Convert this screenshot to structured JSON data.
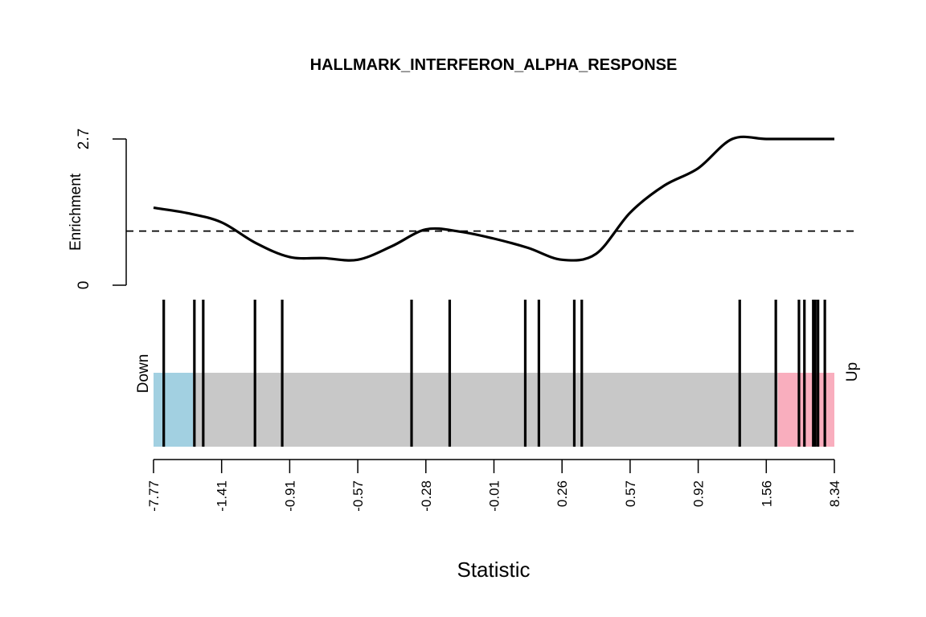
{
  "chart_data": {
    "type": "barcode-enrichment",
    "title": "HALLMARK_INTERFERON_ALPHA_RESPONSE",
    "xlabel": "Statistic",
    "enrichment_axis": {
      "label": "Enrichment",
      "ticks": [
        "0",
        "2.7"
      ],
      "ylim": [
        0,
        2.7
      ],
      "reference_line": 1.0
    },
    "enrichment_curve": {
      "x": [
        0.0,
        0.05,
        0.1,
        0.15,
        0.2,
        0.25,
        0.3,
        0.35,
        0.4,
        0.45,
        0.5,
        0.55,
        0.6,
        0.65,
        0.7,
        0.75,
        0.8,
        0.85,
        0.9,
        0.95,
        1.0
      ],
      "y": [
        1.43,
        1.33,
        1.16,
        0.78,
        0.52,
        0.5,
        0.47,
        0.72,
        1.03,
        0.99,
        0.86,
        0.69,
        0.47,
        0.58,
        1.34,
        1.84,
        2.16,
        2.7,
        2.7,
        2.7,
        2.7
      ]
    },
    "region_labels": {
      "down": "Down",
      "up": "Up"
    },
    "colors": {
      "down": "#a2d0e1",
      "middle": "#c8c8c8",
      "up": "#f9aebe",
      "line": "#000000"
    },
    "regions": {
      "down_end": 0.058,
      "up_start": 0.917
    },
    "gene_positions": [
      0.015,
      0.06,
      0.073,
      0.149,
      0.189,
      0.379,
      0.435,
      0.546,
      0.566,
      0.618,
      0.629,
      0.861,
      0.914,
      0.948,
      0.956,
      0.969,
      0.972,
      0.976,
      0.986
    ],
    "x_ticks": [
      "-7.77",
      "-1.41",
      "-0.91",
      "-0.57",
      "-0.28",
      "-0.01",
      "0.26",
      "0.57",
      "0.92",
      "1.56",
      "8.34"
    ]
  }
}
